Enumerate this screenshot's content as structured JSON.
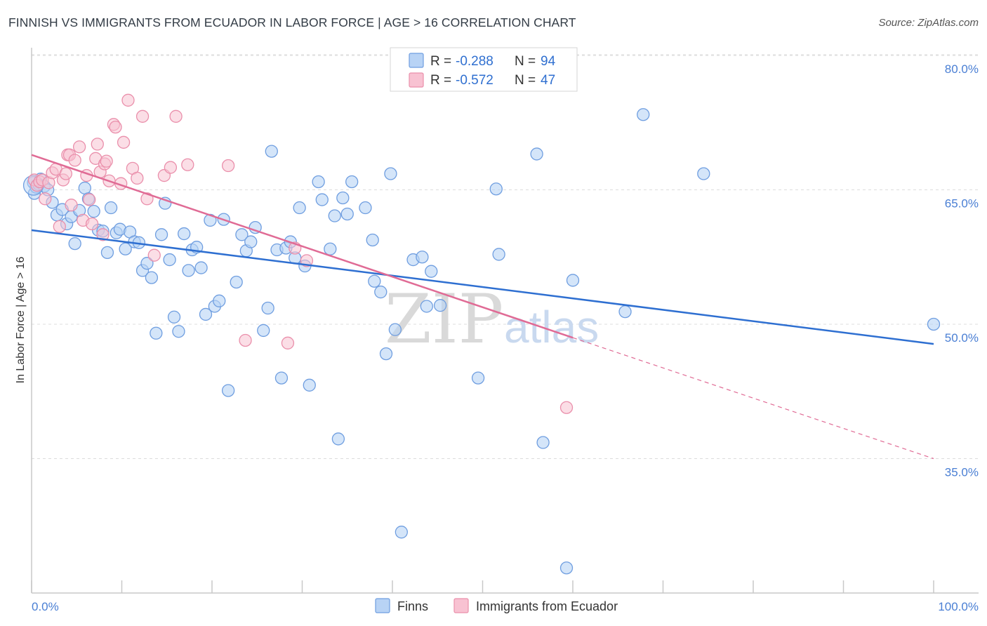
{
  "title": "FINNISH VS IMMIGRANTS FROM ECUADOR IN LABOR FORCE | AGE > 16 CORRELATION CHART",
  "source": "Source: ZipAtlas.com",
  "watermark": {
    "zip": "ZIP",
    "atlas": "atlas"
  },
  "colors": {
    "finns_fill": "#b8d3f5",
    "finns_stroke": "#6f9ee0",
    "finns_line": "#2e6fd1",
    "ecuador_fill": "#f8c2d2",
    "ecuador_stroke": "#ea8fab",
    "ecuador_line": "#e06b95",
    "grid": "#dcdcdc",
    "tick_label": "#4a7fd4"
  },
  "legend_top": {
    "rows": [
      {
        "r_label": "R = ",
        "r_value": "-0.288",
        "n_label": "N = ",
        "n_value": "94"
      },
      {
        "r_label": "R = ",
        "r_value": "-0.572",
        "n_label": "N = ",
        "n_value": "47"
      }
    ]
  },
  "chart_data": {
    "type": "scatter",
    "title": "FINNISH VS IMMIGRANTS FROM ECUADOR IN LABOR FORCE | AGE > 16 CORRELATION CHART",
    "xlabel": "",
    "ylabel": "In Labor Force | Age > 16",
    "xlim": [
      0,
      100
    ],
    "ylim": [
      20,
      82.5
    ],
    "x_tick_labels": [
      "0.0%",
      "100.0%"
    ],
    "y_ticks": [
      35,
      50,
      65,
      80
    ],
    "y_tick_labels": [
      "35.0%",
      "50.0%",
      "65.0%",
      "80.0%"
    ],
    "grid": true,
    "legend_placement": "top-center",
    "series": [
      {
        "name": "Finns",
        "r": -0.288,
        "n": 94,
        "trend": {
          "x": [
            0,
            100
          ],
          "y": [
            60.5,
            47.8
          ]
        },
        "points": [
          [
            0.2,
            65.8
          ],
          [
            0.3,
            64.6
          ],
          [
            0.5,
            65.3
          ],
          [
            0.8,
            65.6
          ],
          [
            1.0,
            66.2
          ],
          [
            1.4,
            65.4
          ],
          [
            1.8,
            65.0
          ],
          [
            2.3,
            63.6
          ],
          [
            2.8,
            62.2
          ],
          [
            3.4,
            62.8
          ],
          [
            3.9,
            61.2
          ],
          [
            4.4,
            62.0
          ],
          [
            4.8,
            59.0
          ],
          [
            5.3,
            62.7
          ],
          [
            5.9,
            65.2
          ],
          [
            6.3,
            64.0
          ],
          [
            6.9,
            62.6
          ],
          [
            7.4,
            60.5
          ],
          [
            7.9,
            60.4
          ],
          [
            8.4,
            58.0
          ],
          [
            8.8,
            63.0
          ],
          [
            9.4,
            60.2
          ],
          [
            9.8,
            60.6
          ],
          [
            10.4,
            58.4
          ],
          [
            10.9,
            60.3
          ],
          [
            11.4,
            59.2
          ],
          [
            11.9,
            59.1
          ],
          [
            12.3,
            56.0
          ],
          [
            12.8,
            56.8
          ],
          [
            13.3,
            55.2
          ],
          [
            13.8,
            49.0
          ],
          [
            14.4,
            60.0
          ],
          [
            14.8,
            63.5
          ],
          [
            15.3,
            57.2
          ],
          [
            15.8,
            50.8
          ],
          [
            16.3,
            49.2
          ],
          [
            16.9,
            60.1
          ],
          [
            17.4,
            56.0
          ],
          [
            17.8,
            58.3
          ],
          [
            18.3,
            58.6
          ],
          [
            18.8,
            56.3
          ],
          [
            19.3,
            51.1
          ],
          [
            19.8,
            61.6
          ],
          [
            20.3,
            52.0
          ],
          [
            20.8,
            52.6
          ],
          [
            21.3,
            61.7
          ],
          [
            21.8,
            42.6
          ],
          [
            22.7,
            54.7
          ],
          [
            23.3,
            60.0
          ],
          [
            23.8,
            58.2
          ],
          [
            24.3,
            59.2
          ],
          [
            24.8,
            60.8
          ],
          [
            25.7,
            49.3
          ],
          [
            26.2,
            51.8
          ],
          [
            26.6,
            69.3
          ],
          [
            27.2,
            58.3
          ],
          [
            27.7,
            44.0
          ],
          [
            28.2,
            58.5
          ],
          [
            28.7,
            59.2
          ],
          [
            29.2,
            57.4
          ],
          [
            29.7,
            63.0
          ],
          [
            30.3,
            56.5
          ],
          [
            30.8,
            43.2
          ],
          [
            31.8,
            65.9
          ],
          [
            32.2,
            63.9
          ],
          [
            33.1,
            58.4
          ],
          [
            33.6,
            62.1
          ],
          [
            34.0,
            37.2
          ],
          [
            34.5,
            64.1
          ],
          [
            35.0,
            62.3
          ],
          [
            35.5,
            65.9
          ],
          [
            37.0,
            63.0
          ],
          [
            37.8,
            59.4
          ],
          [
            38.0,
            54.8
          ],
          [
            38.7,
            53.6
          ],
          [
            39.3,
            46.7
          ],
          [
            39.8,
            66.8
          ],
          [
            40.3,
            49.4
          ],
          [
            41.0,
            26.8
          ],
          [
            42.3,
            57.2
          ],
          [
            43.3,
            57.5
          ],
          [
            43.8,
            52.0
          ],
          [
            44.3,
            55.9
          ],
          [
            45.3,
            52.1
          ],
          [
            49.5,
            44.0
          ],
          [
            51.5,
            65.1
          ],
          [
            51.8,
            57.8
          ],
          [
            56.0,
            69.0
          ],
          [
            56.7,
            36.8
          ],
          [
            59.3,
            22.8
          ],
          [
            60.0,
            54.9
          ],
          [
            65.8,
            51.4
          ],
          [
            67.8,
            73.4
          ],
          [
            74.5,
            66.8
          ],
          [
            100.0,
            50.0
          ]
        ]
      },
      {
        "name": "Immigrants from Ecuador",
        "r": -0.572,
        "n": 47,
        "trend": {
          "x": [
            0,
            60
          ],
          "y": [
            68.9,
            48.5
          ]
        },
        "trend_dashed": {
          "x": [
            60,
            100
          ],
          "y": [
            48.5,
            35.0
          ]
        },
        "points": [
          [
            0.3,
            66.1
          ],
          [
            0.6,
            65.5
          ],
          [
            0.9,
            65.9
          ],
          [
            1.2,
            66.1
          ],
          [
            1.5,
            64.0
          ],
          [
            1.9,
            65.8
          ],
          [
            2.3,
            66.9
          ],
          [
            2.7,
            67.3
          ],
          [
            3.1,
            60.9
          ],
          [
            3.5,
            66.1
          ],
          [
            3.8,
            66.8
          ],
          [
            4.0,
            68.9
          ],
          [
            4.2,
            68.9
          ],
          [
            4.4,
            63.3
          ],
          [
            4.8,
            68.3
          ],
          [
            5.3,
            69.8
          ],
          [
            5.7,
            61.6
          ],
          [
            6.1,
            66.6
          ],
          [
            6.4,
            63.9
          ],
          [
            6.7,
            61.2
          ],
          [
            7.1,
            68.5
          ],
          [
            7.3,
            70.1
          ],
          [
            7.6,
            67.0
          ],
          [
            7.9,
            60.0
          ],
          [
            8.1,
            67.9
          ],
          [
            8.3,
            68.2
          ],
          [
            8.6,
            66.0
          ],
          [
            9.1,
            72.3
          ],
          [
            9.3,
            72.0
          ],
          [
            9.9,
            65.7
          ],
          [
            10.2,
            70.3
          ],
          [
            10.7,
            75.0
          ],
          [
            11.2,
            67.4
          ],
          [
            11.7,
            66.3
          ],
          [
            12.3,
            73.2
          ],
          [
            12.8,
            64.0
          ],
          [
            13.6,
            57.7
          ],
          [
            14.7,
            66.6
          ],
          [
            15.4,
            67.5
          ],
          [
            16.0,
            73.2
          ],
          [
            17.3,
            67.8
          ],
          [
            21.8,
            67.7
          ],
          [
            23.7,
            48.2
          ],
          [
            28.4,
            47.9
          ],
          [
            29.2,
            58.5
          ],
          [
            30.5,
            57.1
          ],
          [
            59.3,
            40.7
          ]
        ]
      }
    ]
  },
  "bottom_legend": {
    "items": [
      "Finns",
      "Immigrants from Ecuador"
    ]
  }
}
